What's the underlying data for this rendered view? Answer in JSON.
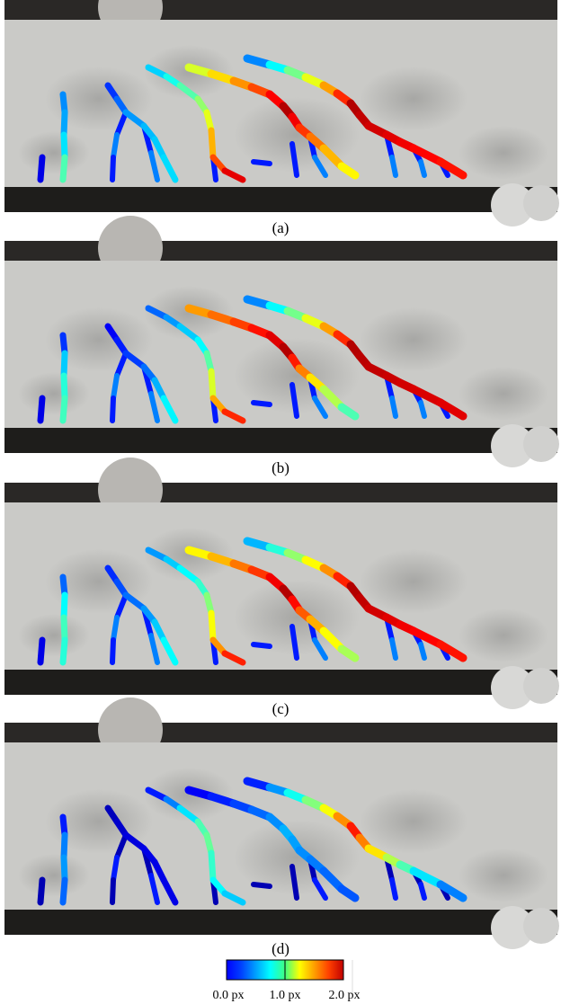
{
  "panels": [
    {
      "label": "(a)"
    },
    {
      "label": "(b)"
    },
    {
      "label": "(c)"
    },
    {
      "label": "(d)"
    }
  ],
  "colorbar": {
    "labels": [
      "0.0 px",
      "1.0 px",
      "2.0 px"
    ]
  }
}
